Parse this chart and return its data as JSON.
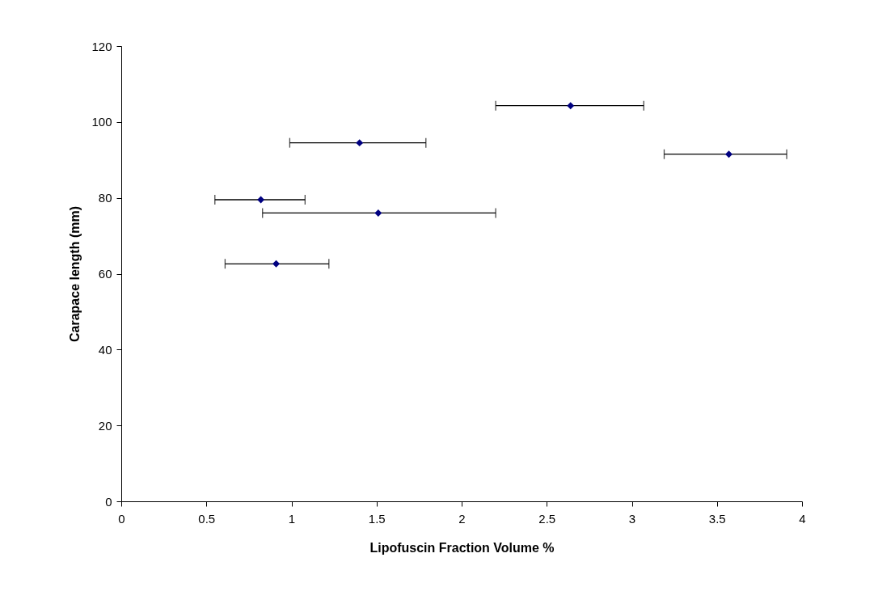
{
  "chart_data": {
    "type": "scatter",
    "xlabel": "Lipofuscin Fraction Volume %",
    "ylabel": "Carapace length (mm)",
    "x": [
      2.64,
      1.4,
      3.57,
      0.82,
      1.51,
      0.91
    ],
    "values": [
      104.3,
      94.5,
      91.5,
      79.5,
      76.0,
      62.6
    ],
    "xerrors": [
      [
        2.2,
        3.07
      ],
      [
        0.99,
        1.79
      ],
      [
        3.19,
        3.91
      ],
      [
        0.55,
        1.08
      ],
      [
        0.83,
        2.2
      ],
      [
        0.61,
        1.22
      ]
    ],
    "color": "#000080",
    "marker": "diamond",
    "grid": false,
    "xlim": [
      0,
      4
    ],
    "ylim": [
      0,
      120
    ],
    "xticks": [
      0,
      0.5,
      1,
      1.5,
      2,
      2.5,
      3,
      3.5,
      4
    ],
    "yticks": [
      0,
      20,
      40,
      60,
      80,
      100,
      120
    ]
  }
}
